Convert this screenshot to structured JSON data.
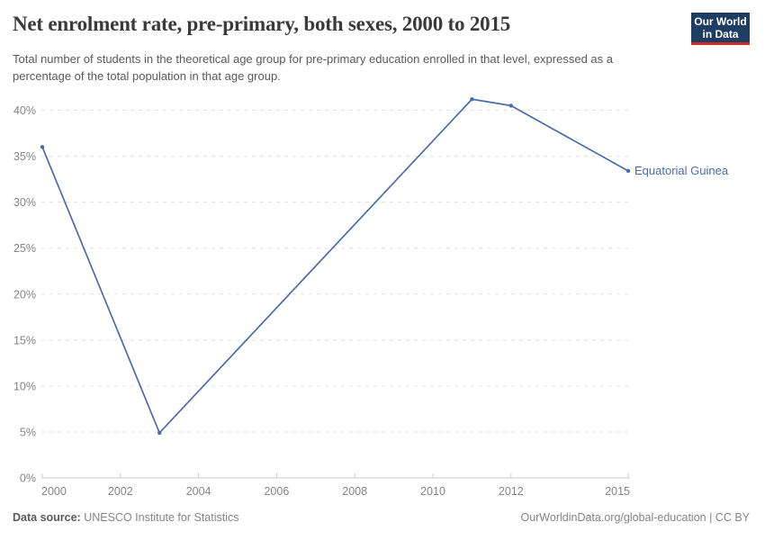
{
  "header": {
    "title": "Net enrolment rate, pre-primary, both sexes, 2000 to 2015",
    "subtitle": "Total number of students in the theoretical age group for pre-primary education enrolled in that level, expressed as a percentage of the total population in that age group."
  },
  "logo": {
    "line1": "Our World",
    "line2": "in Data",
    "bg_color": "#1d3d63",
    "bar_color": "#cf2e22"
  },
  "chart_data": {
    "type": "line",
    "title": "Net enrolment rate, pre-primary, both sexes, 2000 to 2015",
    "xlabel": "",
    "ylabel": "",
    "xlim": [
      2000,
      2015
    ],
    "ylim": [
      0,
      40
    ],
    "xticks": [
      2000,
      2002,
      2004,
      2006,
      2008,
      2010,
      2012,
      2015
    ],
    "yticks": [
      0,
      5,
      10,
      15,
      20,
      25,
      30,
      35,
      40
    ],
    "ytick_suffix": "%",
    "grid": true,
    "legend_position": "end-of-line-label",
    "series": [
      {
        "name": "Equatorial Guinea",
        "color": "#4b6bad",
        "x": [
          2000,
          2003,
          2011,
          2012,
          2015
        ],
        "values": [
          36,
          4.9,
          41.2,
          40.5,
          33.4
        ]
      }
    ],
    "colors": {
      "gridline": "#e0e0e0",
      "axis": "#cccccc",
      "tick_label": "#858585"
    }
  },
  "footer": {
    "source_label": "Data source:",
    "source": "UNESCO Institute for Statistics",
    "right": "OurWorldinData.org/global-education | CC BY"
  }
}
